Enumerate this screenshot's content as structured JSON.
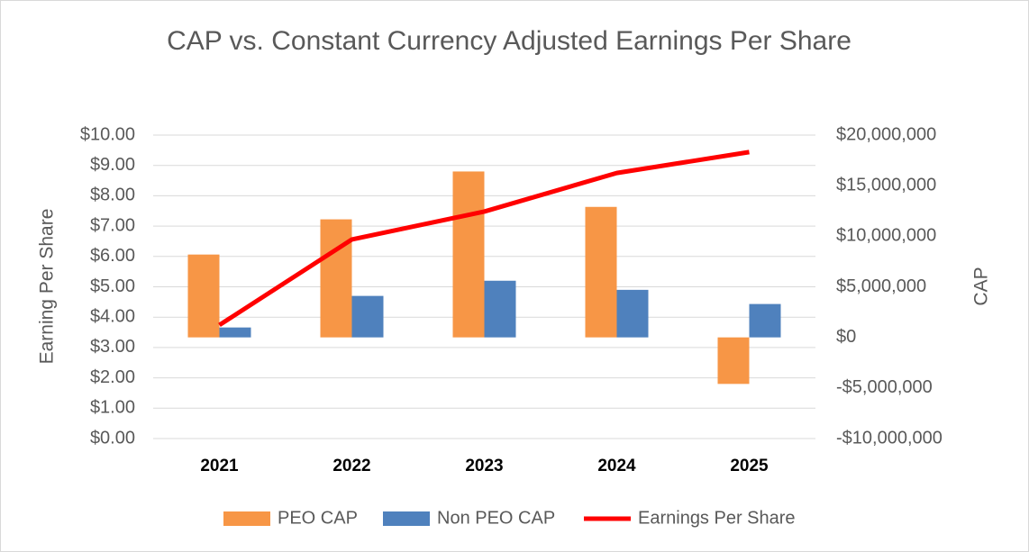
{
  "chart_data": {
    "type": "bar",
    "title": "CAP vs. Constant Currency Adjusted Earnings Per Share",
    "y_label": "Earning Per Share",
    "y2_label": "CAP",
    "categories": [
      "2021",
      "2022",
      "2023",
      "2024",
      "2025"
    ],
    "ylim": [
      0,
      10
    ],
    "yticks": [
      {
        "value": 0,
        "label": "$0.00"
      },
      {
        "value": 1,
        "label": "$1.00"
      },
      {
        "value": 2,
        "label": "$2.00"
      },
      {
        "value": 3,
        "label": "$3.00"
      },
      {
        "value": 4,
        "label": "$4.00"
      },
      {
        "value": 5,
        "label": "$5.00"
      },
      {
        "value": 6,
        "label": "$6.00"
      },
      {
        "value": 7,
        "label": "$7.00"
      },
      {
        "value": 8,
        "label": "$8.00"
      },
      {
        "value": 9,
        "label": "$9.00"
      },
      {
        "value": 10,
        "label": "$10.00"
      }
    ],
    "y2lim": [
      -10000000,
      20000000
    ],
    "y2ticks": [
      {
        "value": -10000000,
        "label": "-$10,000,000"
      },
      {
        "value": -5000000,
        "label": "-$5,000,000"
      },
      {
        "value": 0,
        "label": "$0"
      },
      {
        "value": 5000000,
        "label": "$5,000,000"
      },
      {
        "value": 10000000,
        "label": "$10,000,000"
      },
      {
        "value": 15000000,
        "label": "$15,000,000"
      },
      {
        "value": 20000000,
        "label": "$20,000,000"
      }
    ],
    "grid": true,
    "legend": "bottom",
    "series": [
      {
        "name": "PEO CAP",
        "type": "bar",
        "axis": "y2",
        "color": "#f79646",
        "values": [
          8190000,
          11670000,
          16400000,
          12900000,
          -4600000
        ]
      },
      {
        "name": "Non PEO CAP",
        "type": "bar",
        "axis": "y2",
        "color": "#4f81bd",
        "values": [
          980000,
          4100000,
          5600000,
          4700000,
          3300000
        ]
      },
      {
        "name": "Earnings Per Share",
        "type": "line",
        "color": "#ff0000",
        "values": [
          3.74,
          6.56,
          7.48,
          8.75,
          9.44
        ]
      }
    ]
  }
}
